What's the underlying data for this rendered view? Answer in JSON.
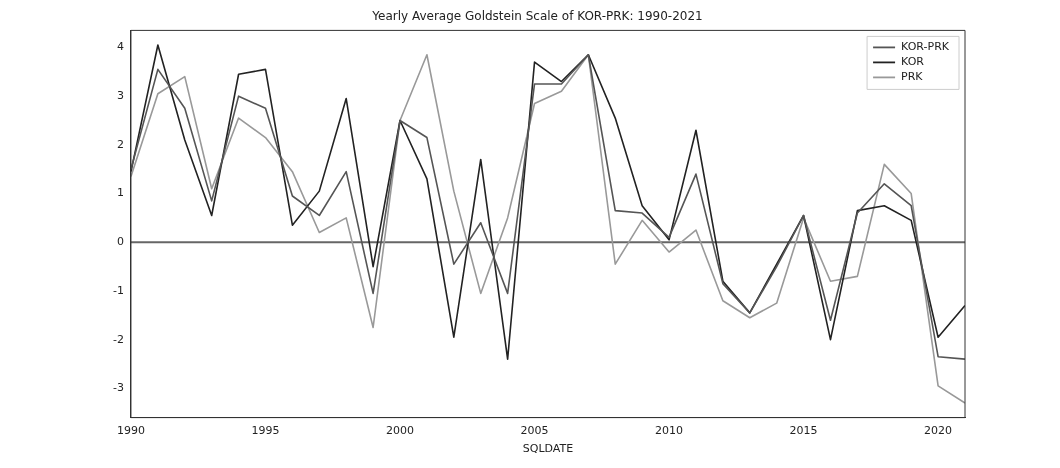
{
  "chart_data": {
    "type": "line",
    "title": "Yearly Average Goldstein Scale of KOR-PRK: 1990-2021",
    "xlabel": "SQLDATE",
    "x": [
      1990,
      1991,
      1992,
      1993,
      1994,
      1995,
      1996,
      1997,
      1998,
      1999,
      2000,
      2001,
      2002,
      2003,
      2004,
      2005,
      2006,
      2007,
      2008,
      2009,
      2010,
      2011,
      2012,
      2013,
      2014,
      2015,
      2016,
      2017,
      2018,
      2019,
      2020,
      2021
    ],
    "series": [
      {
        "name": "KOR-PRK",
        "color": "#555555",
        "values": [
          1.5,
          3.55,
          2.75,
          0.85,
          3.0,
          2.75,
          0.95,
          0.55,
          1.45,
          -1.05,
          2.5,
          2.15,
          -0.45,
          0.4,
          -1.05,
          3.25,
          3.25,
          3.85,
          0.65,
          0.6,
          0.1,
          1.4,
          -0.85,
          -1.45,
          -0.5,
          0.55,
          -1.6,
          0.6,
          1.2,
          0.75,
          -2.35,
          -2.4
        ]
      },
      {
        "name": "KOR",
        "color": "#222222",
        "values": [
          1.45,
          4.05,
          2.1,
          0.55,
          3.45,
          3.55,
          0.35,
          1.05,
          2.95,
          -0.5,
          2.5,
          1.3,
          -1.95,
          1.7,
          -2.4,
          3.7,
          3.3,
          3.85,
          2.55,
          0.75,
          0.05,
          2.3,
          -0.8,
          -1.45,
          -0.45,
          0.55,
          -2.0,
          0.65,
          0.75,
          0.45,
          -1.95,
          -1.3
        ]
      },
      {
        "name": "PRK",
        "color": "#999999",
        "values": [
          1.35,
          3.05,
          3.4,
          1.1,
          2.55,
          2.15,
          1.45,
          0.2,
          0.5,
          -1.75,
          2.5,
          3.85,
          1.05,
          -1.05,
          0.5,
          2.85,
          3.1,
          3.85,
          -0.45,
          0.45,
          -0.2,
          0.25,
          -1.2,
          -1.55,
          -1.25,
          0.5,
          -0.8,
          -0.7,
          1.6,
          1.0,
          -2.95,
          -3.3
        ]
      }
    ],
    "xlim": [
      1990,
      2021
    ],
    "xticks": [
      1990,
      1995,
      2000,
      2005,
      2010,
      2015,
      2020
    ],
    "ylim": [
      -3.6,
      4.35
    ],
    "yticks": [
      -3,
      -2,
      -1,
      0,
      1,
      2,
      3,
      4
    ],
    "ref_lines": [
      {
        "axis": "y",
        "value": 0,
        "color": "#666666"
      }
    ],
    "legend": "top right",
    "grid": false,
    "marker": "none",
    "line_style": "solid"
  }
}
